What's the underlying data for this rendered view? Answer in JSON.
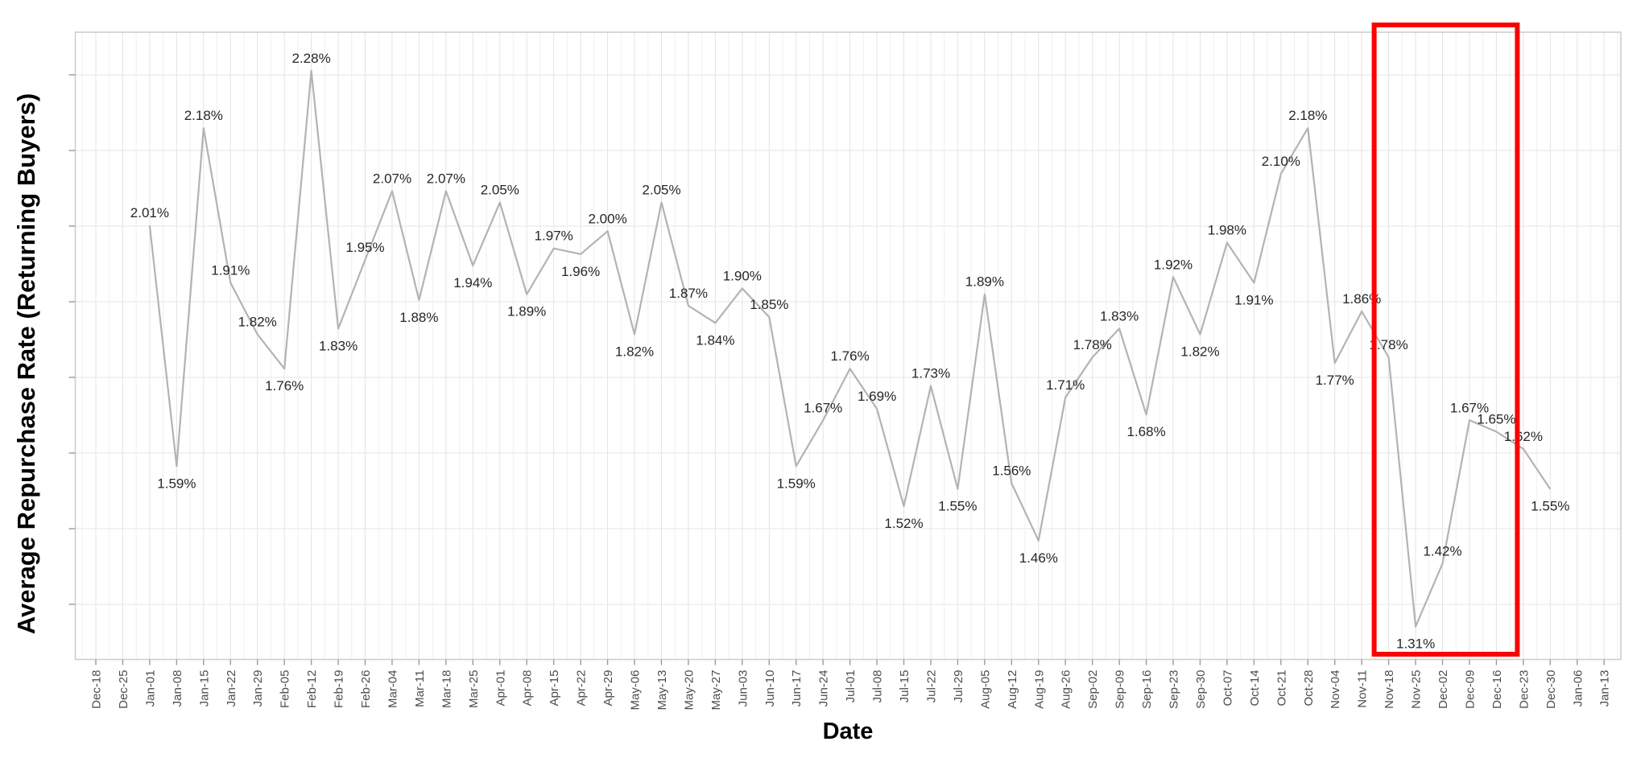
{
  "chart_data": {
    "type": "line",
    "title": "",
    "xlabel": "Date",
    "ylabel": "Average Repurchase Rate (Returning Buyers)",
    "ylim": [
      1.252,
      2.347
    ],
    "grid": true,
    "legend": "none",
    "x_tick_labels": [
      "Dec-18",
      "Dec-25",
      "Jan-01",
      "Jan-08",
      "Jan-15",
      "Jan-22",
      "Jan-29",
      "Feb-05",
      "Feb-12",
      "Feb-19",
      "Feb-26",
      "Mar-04",
      "Mar-11",
      "Mar-18",
      "Mar-25",
      "Apr-01",
      "Apr-08",
      "Apr-15",
      "Apr-22",
      "Apr-29",
      "May-06",
      "May-13",
      "May-20",
      "May-27",
      "Jun-03",
      "Jun-10",
      "Jun-17",
      "Jun-24",
      "Jul-01",
      "Jul-08",
      "Jul-15",
      "Jul-22",
      "Jul-29",
      "Aug-05",
      "Aug-12",
      "Aug-19",
      "Aug-26",
      "Sep-02",
      "Sep-09",
      "Sep-16",
      "Sep-23",
      "Sep-30",
      "Oct-07",
      "Oct-14",
      "Oct-21",
      "Oct-28",
      "Nov-04",
      "Nov-11",
      "Nov-18",
      "Nov-25",
      "Dec-02",
      "Dec-09",
      "Dec-16",
      "Dec-23",
      "Dec-30",
      "Jan-06",
      "Jan-13"
    ],
    "series": [
      {
        "name": "average-repurchase-rate",
        "x": [
          "Jan-01",
          "Jan-08",
          "Jan-15",
          "Jan-22",
          "Jan-29",
          "Feb-05",
          "Feb-12",
          "Feb-19",
          "Feb-26",
          "Mar-04",
          "Mar-11",
          "Mar-18",
          "Mar-25",
          "Apr-01",
          "Apr-08",
          "Apr-15",
          "Apr-22",
          "Apr-29",
          "May-06",
          "May-13",
          "May-20",
          "May-27",
          "Jun-03",
          "Jun-10",
          "Jun-17",
          "Jun-24",
          "Jul-01",
          "Jul-08",
          "Jul-15",
          "Jul-22",
          "Jul-29",
          "Aug-05",
          "Aug-12",
          "Aug-19",
          "Aug-26",
          "Sep-02",
          "Sep-09",
          "Sep-16",
          "Sep-23",
          "Sep-30",
          "Oct-07",
          "Oct-14",
          "Oct-21",
          "Oct-28",
          "Nov-04",
          "Nov-11",
          "Nov-18",
          "Nov-25",
          "Dec-02",
          "Dec-09",
          "Dec-16",
          "Dec-23",
          "Dec-30"
        ],
        "values": [
          2.01,
          1.59,
          2.18,
          1.91,
          1.82,
          1.76,
          2.28,
          1.83,
          1.95,
          2.07,
          1.88,
          2.07,
          1.94,
          2.05,
          1.89,
          1.97,
          1.96,
          2.0,
          1.82,
          2.05,
          1.87,
          1.84,
          1.9,
          1.85,
          1.59,
          1.67,
          1.76,
          1.69,
          1.52,
          1.73,
          1.55,
          1.89,
          1.56,
          1.46,
          1.71,
          1.78,
          1.83,
          1.68,
          1.92,
          1.82,
          1.98,
          1.91,
          2.1,
          2.18,
          1.77,
          1.86,
          1.78,
          1.31,
          1.42,
          1.67,
          1.65,
          1.62,
          1.55
        ],
        "point_labels": [
          "2.01%",
          "1.59%",
          "2.18%",
          "1.91%",
          "1.82%",
          "1.76%",
          "2.28%",
          "1.83%",
          "1.95%",
          "2.07%",
          "1.88%",
          "2.07%",
          "1.94%",
          "2.05%",
          "1.89%",
          "1.97%",
          "1.96%",
          "2.00%",
          "1.82%",
          "2.05%",
          "1.87%",
          "1.84%",
          "1.90%",
          "1.85%",
          "1.59%",
          "1.67%",
          "1.76%",
          "1.69%",
          "1.52%",
          "1.73%",
          "1.55%",
          "1.89%",
          "1.56%",
          "1.46%",
          "1.71%",
          "1.78%",
          "1.83%",
          "1.68%",
          "1.92%",
          "1.82%",
          "1.98%",
          "1.91%",
          "2.10%",
          "2.18%",
          "1.77%",
          "1.86%",
          "1.78%",
          "1.31%",
          "1.42%",
          "1.67%",
          "1.65%",
          "1.62%",
          "1.55%"
        ]
      }
    ],
    "highlight_region": {
      "from": "Nov-18",
      "to": "Dec-16"
    },
    "colors": {
      "line": "#b3b3b3",
      "point_label": "#262626",
      "tick_label": "#4d4d4d",
      "axis_title": "#000000",
      "grid_major": "#e3e3e3",
      "grid_minor": "#f0f0f0",
      "plot_border": "#cfcfcf",
      "tick_mark": "#9a9a9a",
      "highlight": "#fb0100",
      "background": "#ffffff"
    }
  }
}
